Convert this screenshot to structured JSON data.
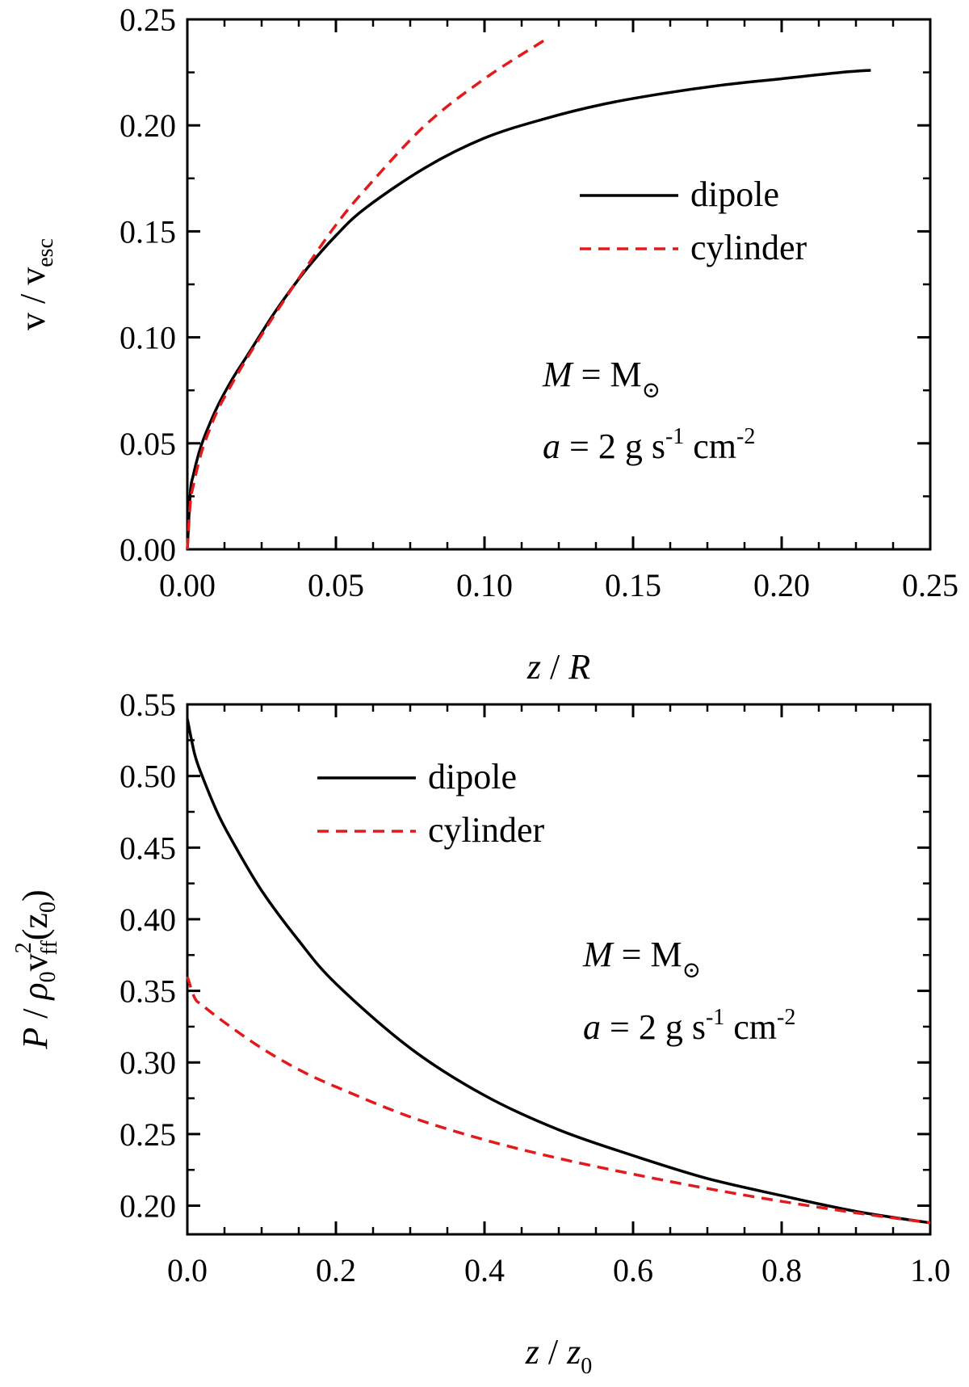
{
  "chart_data": [
    {
      "type": "line",
      "xlabel": "z / R",
      "ylabel": "v / v_esc",
      "xlim": [
        0,
        0.25
      ],
      "ylim": [
        0,
        0.25
      ],
      "xticks": [
        0.0,
        0.05,
        0.1,
        0.15,
        0.2,
        0.25
      ],
      "yticks": [
        0.0,
        0.05,
        0.1,
        0.15,
        0.2,
        0.25
      ],
      "xtick_labels": [
        "0.00",
        "0.05",
        "0.10",
        "0.15",
        "0.20",
        "0.25"
      ],
      "ytick_labels": [
        "0.00",
        "0.05",
        "0.10",
        "0.15",
        "0.20",
        "0.25"
      ],
      "grid": false,
      "legend_position": "upper-right",
      "annotation": {
        "line1": "M =  M⊙",
        "line2": "a = 2 g s-1 cm-2"
      },
      "series": [
        {
          "name": "dipole",
          "color": "#000000",
          "style": "solid",
          "x": [
            0.0,
            0.001,
            0.002,
            0.004,
            0.006,
            0.01,
            0.015,
            0.02,
            0.03,
            0.04,
            0.05,
            0.06,
            0.08,
            0.1,
            0.12,
            0.14,
            0.16,
            0.18,
            0.2,
            0.22,
            0.23
          ],
          "y": [
            0.0,
            0.027,
            0.035,
            0.046,
            0.054,
            0.067,
            0.08,
            0.091,
            0.113,
            0.132,
            0.148,
            0.161,
            0.18,
            0.194,
            0.203,
            0.21,
            0.215,
            0.219,
            0.222,
            0.225,
            0.226
          ]
        },
        {
          "name": "cylinder",
          "color": "#e31a1c",
          "style": "dashed",
          "x": [
            0.0,
            0.001,
            0.002,
            0.004,
            0.006,
            0.01,
            0.015,
            0.02,
            0.03,
            0.04,
            0.05,
            0.06,
            0.08,
            0.1,
            0.12
          ],
          "y": [
            0.0,
            0.022,
            0.03,
            0.042,
            0.051,
            0.065,
            0.078,
            0.09,
            0.112,
            0.133,
            0.153,
            0.17,
            0.2,
            0.222,
            0.24
          ]
        }
      ]
    },
    {
      "type": "line",
      "xlabel": "z / z0",
      "ylabel": "P / ρ0 v_ff^2 (z0)",
      "xlim": [
        0,
        1.0
      ],
      "ylim": [
        0.18,
        0.55
      ],
      "xticks": [
        0.0,
        0.2,
        0.4,
        0.6,
        0.8,
        1.0
      ],
      "yticks": [
        0.2,
        0.25,
        0.3,
        0.35,
        0.4,
        0.45,
        0.5,
        0.55
      ],
      "xtick_labels": [
        "0.0",
        "0.2",
        "0.4",
        "0.6",
        "0.8",
        "1.0"
      ],
      "ytick_labels": [
        "0.20",
        "0.25",
        "0.30",
        "0.35",
        "0.40",
        "0.45",
        "0.50",
        "0.55"
      ],
      "grid": false,
      "legend_position": "upper-left",
      "annotation": {
        "line1": "M =  M⊙",
        "line2": "a = 2 g s-1 cm-2"
      },
      "series": [
        {
          "name": "dipole",
          "color": "#000000",
          "style": "solid",
          "x": [
            0.0,
            0.01,
            0.02,
            0.04,
            0.06,
            0.1,
            0.15,
            0.2,
            0.3,
            0.4,
            0.5,
            0.6,
            0.7,
            0.8,
            0.9,
            1.0
          ],
          "y": [
            0.54,
            0.515,
            0.5,
            0.475,
            0.455,
            0.42,
            0.385,
            0.355,
            0.31,
            0.277,
            0.253,
            0.235,
            0.219,
            0.207,
            0.196,
            0.188
          ]
        },
        {
          "name": "cylinder",
          "color": "#e31a1c",
          "style": "dashed",
          "x": [
            0.0,
            0.01,
            0.02,
            0.05,
            0.1,
            0.15,
            0.2,
            0.3,
            0.4,
            0.5,
            0.6,
            0.7,
            0.8,
            0.9,
            1.0
          ],
          "y": [
            0.36,
            0.345,
            0.34,
            0.328,
            0.31,
            0.295,
            0.283,
            0.262,
            0.246,
            0.233,
            0.222,
            0.212,
            0.203,
            0.195,
            0.188
          ]
        }
      ]
    }
  ],
  "labels": {
    "top": {
      "xlabel_italic": "z",
      "xlabel_rest": " / ",
      "xlabel_italic2": "R",
      "ylabel_main": "v / v",
      "ylabel_sub": "esc",
      "legend_dipole": "dipole",
      "legend_cylinder": "cylinder",
      "annot_M_italic": "M",
      "annot_M_eq": " =  M",
      "annot_M_sub": "⊙",
      "annot_a_italic": "a",
      "annot_a_eq": " = 2 g s",
      "annot_a_sup1": "-1",
      "annot_a_mid": " cm",
      "annot_a_sup2": "-2"
    },
    "bottom": {
      "xlabel_italic": "z",
      "xlabel_rest": "  / ",
      "xlabel_italic2": "z",
      "xlabel_sub": "0",
      "ylabel_P": "P",
      "ylabel_slash": " / ",
      "ylabel_rho": "ρ",
      "ylabel_sub0": "0",
      "ylabel_v": "v",
      "ylabel_sup2": "2",
      "ylabel_subff": "ff",
      "ylabel_paren_open": "(z",
      "ylabel_paren_sub": "0",
      "ylabel_paren_close": ")",
      "legend_dipole": "dipole",
      "legend_cylinder": "cylinder",
      "annot_M_italic": "M",
      "annot_M_eq": " =  M",
      "annot_M_sub": "⊙",
      "annot_a_italic": "a",
      "annot_a_eq": " = 2 g s",
      "annot_a_sup1": "-1",
      "annot_a_mid": " cm",
      "annot_a_sup2": "-2"
    }
  }
}
